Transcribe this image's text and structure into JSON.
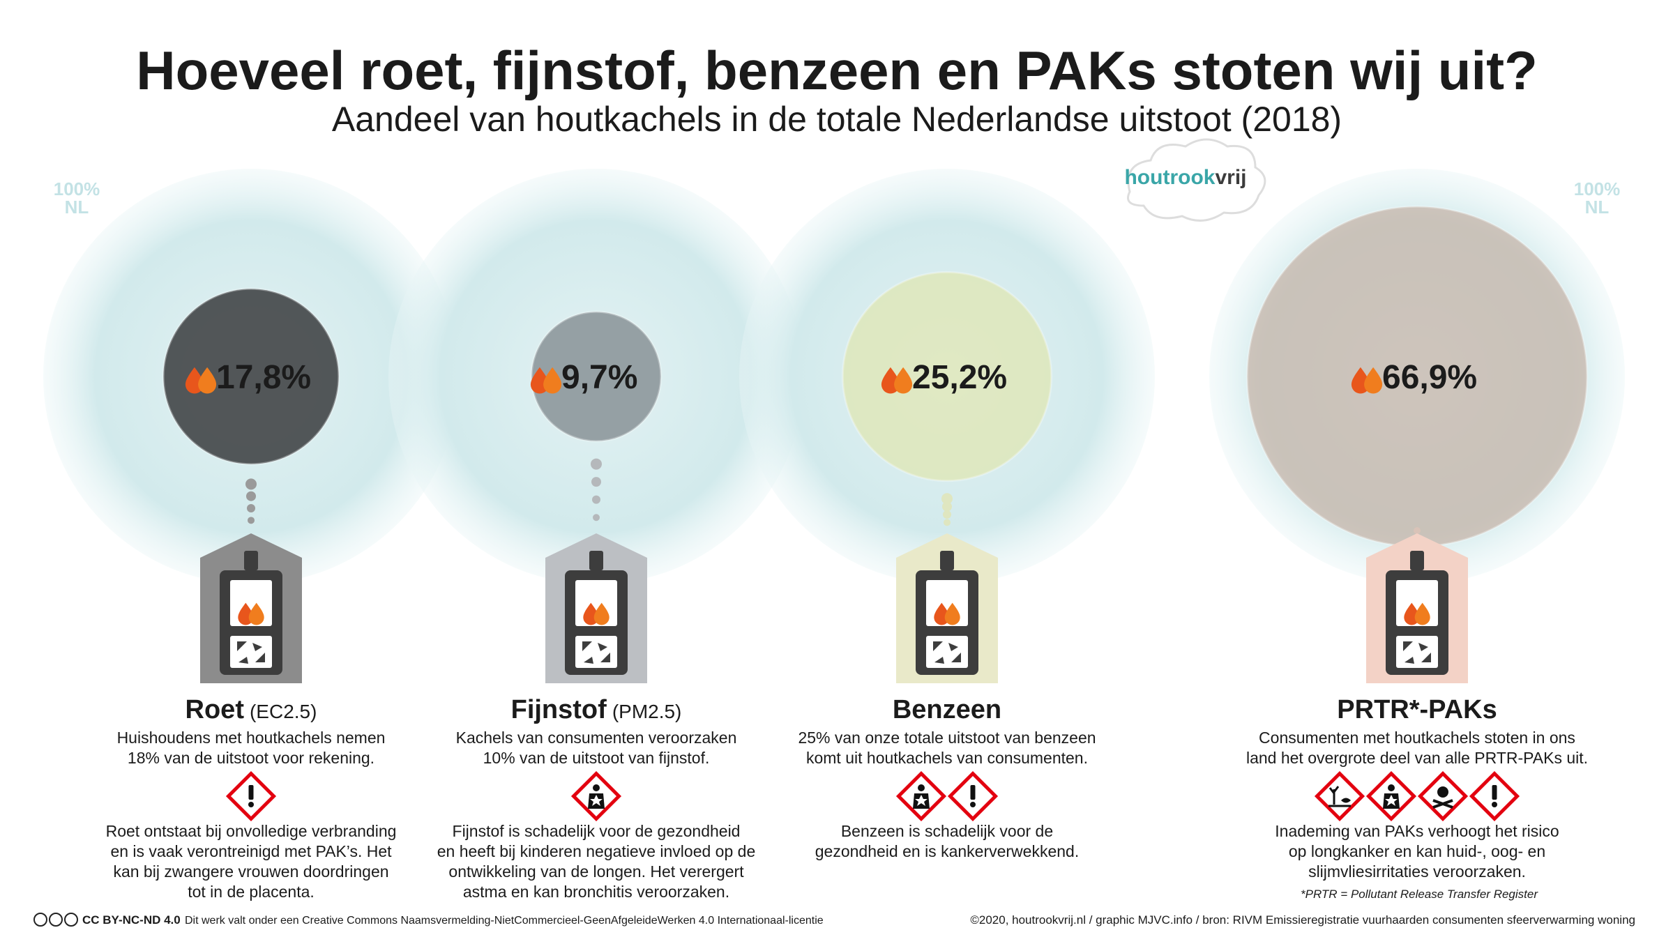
{
  "header": {
    "title": "Hoeveel roet, fijnstof, benzeen en PAKs stoten wij uit?",
    "subtitle": "Aandeel van houtkachels in de totale Nederlandse uitstoot (2018)"
  },
  "reference_label": {
    "value": "100%",
    "region": "NL"
  },
  "logo": {
    "part1": "houtrook",
    "part2": "vrij"
  },
  "items": [
    {
      "name": "Roet",
      "name_suffix": "(EC2.5)",
      "value": 17.8,
      "value_label": "17,8%",
      "description": [
        "Huishoudens met houtkachels nemen",
        "18% van de uitstoot voor rekening."
      ],
      "details": [
        "Roet ontstaat bij onvolledige verbranding",
        "en is vaak verontreinigd met PAK’s. Het",
        "kan bij zwangere vrouwen doordringen",
        "tot in de placenta."
      ]
    },
    {
      "name": "Fijnstof",
      "name_suffix": "(PM2.5)",
      "value": 9.7,
      "value_label": "9,7%",
      "description": [
        "Kachels van consumenten veroorzaken",
        "10% van de uitstoot van fijnstof."
      ],
      "details": [
        "Fijnstof is schadelijk voor de gezondheid",
        "en heeft bij kinderen negatieve invloed op de",
        "ontwikkeling van de longen. Het verergert",
        "astma en kan bronchitis veroorzaken."
      ]
    },
    {
      "name": "Benzeen",
      "name_suffix": null,
      "value": 25.2,
      "value_label": "25,2%",
      "description": [
        "25% van onze totale uitstoot van benzeen",
        "komt uit houtkachels van consumenten."
      ],
      "details": [
        "Benzeen is schadelijk voor de",
        "gezondheid en is kankerverwekkend."
      ]
    },
    {
      "name": "PRTR*-PAKs",
      "name_suffix": null,
      "value": 66.9,
      "value_label": "66,9%",
      "description": [
        "Consumenten met houtkachels stoten in ons",
        "land het overgrote deel van alle PRTR-PAKs uit."
      ],
      "details": [
        "Inademing van PAKs verhoogt het risico",
        "op longkanker en kan huid-, oog- en",
        "slijmvliesirritaties veroorzaken."
      ]
    }
  ],
  "footnote": "*PRTR = Pollutant Release Transfer Register",
  "footer": {
    "license": "CC BY-NC-ND 4.0",
    "license_text": "Dit werk valt onder een Creative Commons Naamsvermelding-NietCommercieel-GeenAfgeleideWerken 4.0 Internationaal-licentie",
    "credits": "©2020, houtrookvrij.nl / graphic MJVC.info / bron: RIVM Emissieregistratie vuurhaarden consumenten sfeerverwarming woning"
  }
}
